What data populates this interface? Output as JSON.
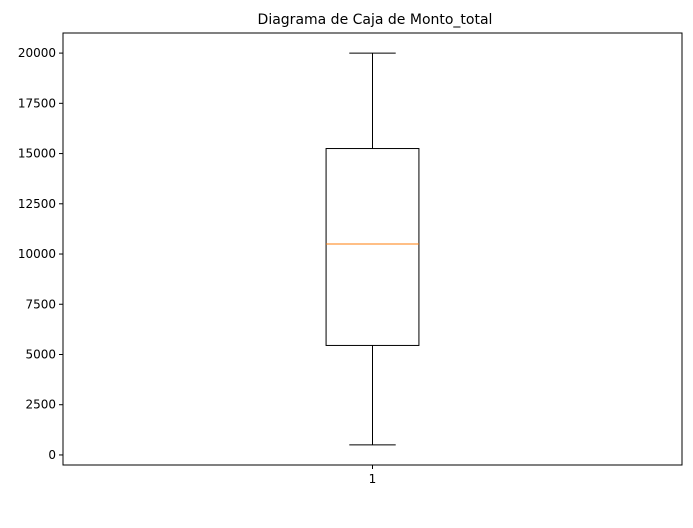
{
  "chart_data": {
    "type": "box",
    "title": "Diagrama de Caja de Monto_total",
    "xlabel": "",
    "ylabel": "",
    "categories": [
      "1"
    ],
    "boxes": [
      {
        "label": "1",
        "whisker_low": 500,
        "q1": 5450,
        "median": 10500,
        "q3": 15250,
        "whisker_high": 20000
      }
    ],
    "ylim": [
      -500,
      21000
    ],
    "xlim": [
      0.5,
      1.5
    ],
    "yticks": [
      0,
      2500,
      5000,
      7500,
      10000,
      12500,
      15000,
      17500,
      20000
    ],
    "ytick_labels": [
      "0",
      "2500",
      "5000",
      "7500",
      "10000",
      "12500",
      "15000",
      "17500",
      "20000"
    ],
    "grid": false,
    "colors": {
      "box": "#000000",
      "median": "#ff7f0e",
      "whisker": "#000000"
    }
  }
}
